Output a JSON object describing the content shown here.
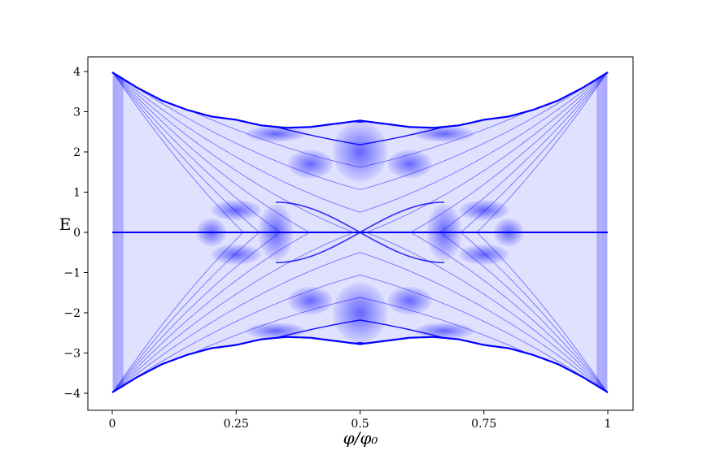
{
  "chart_data": {
    "type": "heatmap",
    "title": "",
    "xlabel": "φ/φ₀",
    "ylabel": "E",
    "xlim": [
      0,
      1
    ],
    "ylim": [
      -4,
      4
    ],
    "x_ticks": [
      {
        "value": 0,
        "label": "0"
      },
      {
        "value": 0.25,
        "label": "0.25"
      },
      {
        "value": 0.5,
        "label": "0.5"
      },
      {
        "value": 0.75,
        "label": "0.75"
      },
      {
        "value": 1,
        "label": "1"
      }
    ],
    "y_ticks": [
      {
        "value": 4,
        "label": "4"
      },
      {
        "value": 3,
        "label": "3"
      },
      {
        "value": 2,
        "label": "2"
      },
      {
        "value": 1,
        "label": "1"
      },
      {
        "value": 0,
        "label": "0"
      },
      {
        "value": -1,
        "label": "−1"
      },
      {
        "value": -2,
        "label": "−2"
      },
      {
        "value": -3,
        "label": "−3"
      },
      {
        "value": -4,
        "label": "−4"
      }
    ],
    "grid": false,
    "color": "#0000ff",
    "background_color": "#ffffff",
    "outer_band_edge": [
      {
        "phi": 0,
        "E": 3.98
      },
      {
        "phi": 0.05,
        "E": 3.6
      },
      {
        "phi": 0.1,
        "E": 3.28
      },
      {
        "phi": 0.15,
        "E": 3.05
      },
      {
        "phi": 0.2,
        "E": 2.88
      },
      {
        "phi": 0.25,
        "E": 2.8
      },
      {
        "phi": 0.3,
        "E": 2.66
      },
      {
        "phi": 0.35,
        "E": 2.6
      },
      {
        "phi": 0.4,
        "E": 2.62
      },
      {
        "phi": 0.45,
        "E": 2.7
      },
      {
        "phi": 0.5,
        "E": 2.78
      },
      {
        "phi": 0.55,
        "E": 2.7
      },
      {
        "phi": 0.6,
        "E": 2.62
      },
      {
        "phi": 0.65,
        "E": 2.6
      },
      {
        "phi": 0.7,
        "E": 2.66
      },
      {
        "phi": 0.75,
        "E": 2.8
      },
      {
        "phi": 0.8,
        "E": 2.88
      },
      {
        "phi": 0.85,
        "E": 3.05
      },
      {
        "phi": 0.9,
        "E": 3.28
      },
      {
        "phi": 0.95,
        "E": 3.6
      },
      {
        "phi": 1,
        "E": 3.98
      }
    ],
    "landau_level_count": 11
  }
}
